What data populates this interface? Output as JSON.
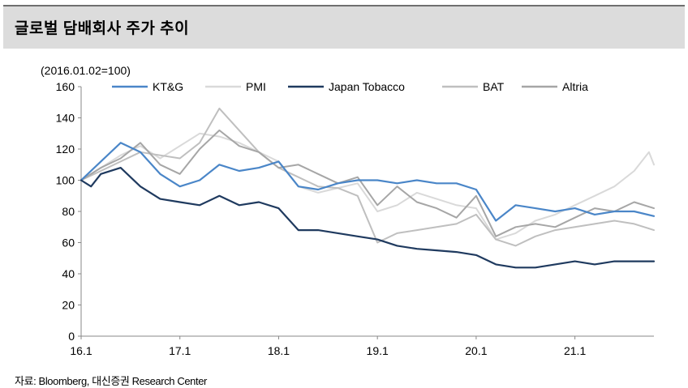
{
  "header": {
    "title": "글로벌 담배회사 주가 추이"
  },
  "note": {
    "baseline": "(2016.01.02=100)"
  },
  "footer": {
    "source": "자료: Bloomberg, 대신증권 Research Center"
  },
  "chart_data": {
    "type": "line",
    "title": "글로벌 담배회사 주가 추이",
    "ylabel": "(2016.01.02=100)",
    "xlabel": "",
    "ylim": [
      0,
      160
    ],
    "yticks": [
      0,
      20,
      40,
      60,
      80,
      100,
      120,
      140,
      160
    ],
    "xlim": [
      16.0,
      21.8
    ],
    "xticks": [
      {
        "value": 16.0,
        "label": "16.1"
      },
      {
        "value": 17.0,
        "label": "17.1"
      },
      {
        "value": 18.0,
        "label": "18.1"
      },
      {
        "value": 19.0,
        "label": "19.1"
      },
      {
        "value": 20.0,
        "label": "20.1"
      },
      {
        "value": 21.0,
        "label": "21.1"
      }
    ],
    "grid": false,
    "legend": "top",
    "series": [
      {
        "name": "PMI",
        "color": "#d9d9d9",
        "x": [
          16.0,
          16.2,
          16.4,
          16.6,
          16.8,
          17.0,
          17.2,
          17.4,
          17.6,
          17.8,
          18.0,
          18.2,
          18.4,
          18.6,
          18.8,
          19.0,
          19.2,
          19.4,
          19.6,
          19.8,
          20.0,
          20.2,
          20.4,
          20.6,
          20.8,
          21.0,
          21.2,
          21.4,
          21.6,
          21.75,
          21.8
        ],
        "y": [
          100,
          108,
          116,
          122,
          114,
          122,
          130,
          128,
          124,
          118,
          112,
          96,
          92,
          95,
          98,
          80,
          84,
          92,
          88,
          84,
          82,
          62,
          66,
          74,
          78,
          84,
          90,
          96,
          106,
          118,
          110
        ]
      },
      {
        "name": "BAT",
        "color": "#bfbfbf",
        "x": [
          16.0,
          16.2,
          16.4,
          16.6,
          16.8,
          17.0,
          17.2,
          17.4,
          17.6,
          17.8,
          18.0,
          18.2,
          18.4,
          18.6,
          18.8,
          19.0,
          19.2,
          19.4,
          19.6,
          19.8,
          20.0,
          20.2,
          20.4,
          20.6,
          20.8,
          21.0,
          21.2,
          21.4,
          21.6,
          21.8
        ],
        "y": [
          100,
          106,
          112,
          118,
          116,
          114,
          124,
          146,
          132,
          118,
          108,
          102,
          96,
          95,
          90,
          60,
          66,
          68,
          70,
          72,
          78,
          62,
          58,
          64,
          68,
          70,
          72,
          74,
          72,
          68
        ]
      },
      {
        "name": "Altria",
        "color": "#a6a6a6",
        "x": [
          16.0,
          16.2,
          16.4,
          16.6,
          16.8,
          17.0,
          17.2,
          17.4,
          17.6,
          17.8,
          18.0,
          18.2,
          18.4,
          18.6,
          18.8,
          19.0,
          19.2,
          19.4,
          19.6,
          19.8,
          20.0,
          20.2,
          20.4,
          20.6,
          20.8,
          21.0,
          21.2,
          21.4,
          21.6,
          21.8
        ],
        "y": [
          100,
          108,
          114,
          124,
          110,
          104,
          120,
          132,
          122,
          118,
          108,
          110,
          104,
          98,
          102,
          84,
          96,
          86,
          82,
          76,
          90,
          64,
          70,
          72,
          70,
          76,
          82,
          80,
          86,
          82
        ]
      },
      {
        "name": "KT&G",
        "color": "#4a86c8",
        "x": [
          16.0,
          16.2,
          16.4,
          16.6,
          16.8,
          17.0,
          17.2,
          17.4,
          17.6,
          17.8,
          18.0,
          18.2,
          18.4,
          18.6,
          18.8,
          19.0,
          19.2,
          19.4,
          19.6,
          19.8,
          20.0,
          20.2,
          20.4,
          20.6,
          20.8,
          21.0,
          21.2,
          21.4,
          21.6,
          21.8
        ],
        "y": [
          100,
          112,
          124,
          118,
          104,
          96,
          100,
          110,
          106,
          108,
          112,
          96,
          94,
          98,
          100,
          100,
          98,
          100,
          98,
          98,
          94,
          74,
          84,
          82,
          80,
          82,
          78,
          80,
          80,
          77
        ]
      },
      {
        "name": "Japan Tobacco",
        "color": "#1f3a5f",
        "x": [
          16.0,
          16.1,
          16.2,
          16.4,
          16.6,
          16.8,
          17.0,
          17.2,
          17.4,
          17.6,
          17.8,
          18.0,
          18.2,
          18.4,
          18.6,
          18.8,
          19.0,
          19.2,
          19.4,
          19.6,
          19.8,
          20.0,
          20.2,
          20.4,
          20.6,
          20.8,
          21.0,
          21.2,
          21.4,
          21.6,
          21.8
        ],
        "y": [
          100,
          96,
          104,
          108,
          96,
          88,
          86,
          84,
          90,
          84,
          86,
          82,
          68,
          68,
          66,
          64,
          62,
          58,
          56,
          55,
          54,
          52,
          46,
          44,
          44,
          46,
          48,
          46,
          48,
          48,
          48
        ]
      }
    ]
  }
}
